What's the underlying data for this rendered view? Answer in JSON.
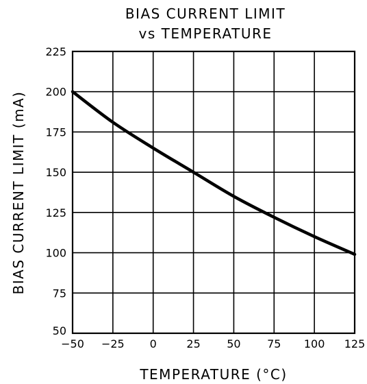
{
  "chart_data": {
    "type": "line",
    "title": [
      "BIAS CURRENT LIMIT",
      "vs TEMPERATURE"
    ],
    "xlabel": "TEMPERATURE (°C)",
    "ylabel": "BIAS CURRENT LIMIT (mA)",
    "xlim": [
      -50,
      125
    ],
    "ylim": [
      50,
      225
    ],
    "xticks": [
      -50,
      -25,
      0,
      25,
      50,
      75,
      100,
      125
    ],
    "yticks": [
      50,
      75,
      100,
      125,
      150,
      175,
      200,
      225
    ],
    "xtick_labels": [
      "−50",
      "−25",
      "0",
      "25",
      "50",
      "75",
      "100",
      "125"
    ],
    "ytick_labels": [
      "50",
      "75",
      "100",
      "125",
      "150",
      "175",
      "200",
      "225"
    ],
    "grid": true,
    "legend": "none",
    "series": [
      {
        "x": [
          -50,
          -25,
          0,
          25,
          50,
          75,
          100,
          125
        ],
        "values": [
          200,
          181,
          165,
          150,
          135,
          122,
          110,
          99
        ]
      }
    ]
  }
}
